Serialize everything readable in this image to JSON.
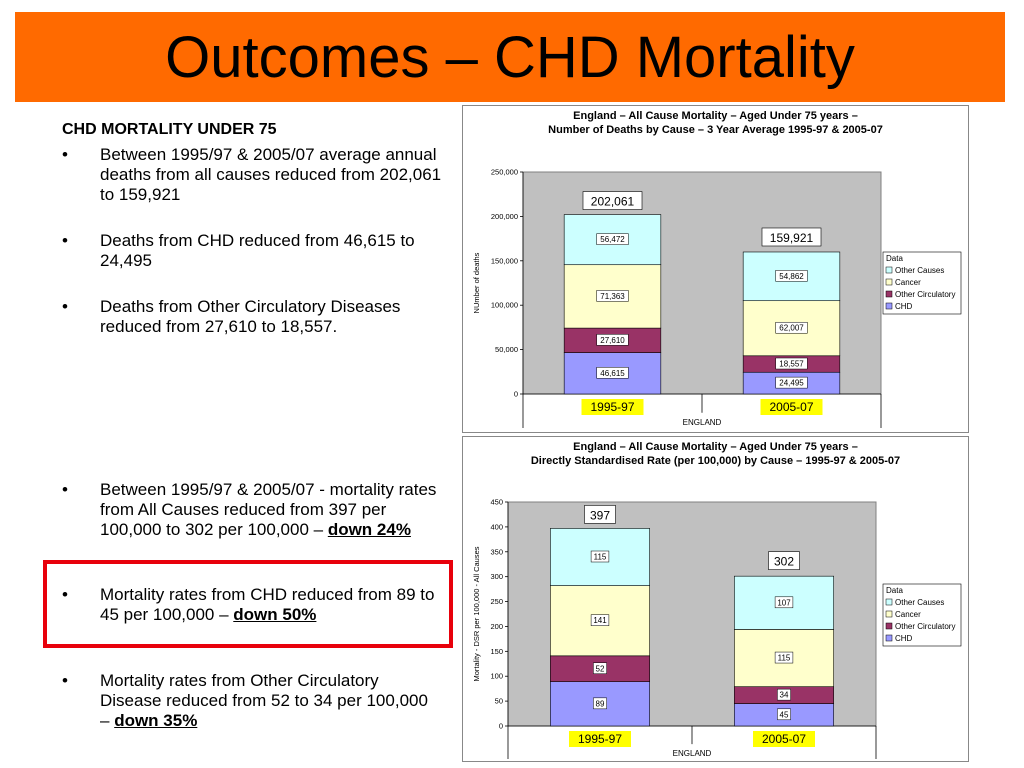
{
  "slide": {
    "title": "Outcomes – CHD Mortality",
    "title_bg": "#ff6a00",
    "highlight_color": "#e8000b"
  },
  "left_text": {
    "heading": "CHD MORTALITY UNDER 75",
    "bullet_symbol": "•",
    "bullets_top": [
      {
        "text": "Between 1995/97 & 2005/07 average annual deaths from all causes reduced from 202,061 to 159,921"
      },
      {
        "text": "Deaths from CHD reduced from 46,615 to 24,495"
      },
      {
        "text": "Deaths from Other Circulatory Diseases reduced from 27,610 to 18,557."
      }
    ],
    "bullets_bottom": [
      {
        "text": "Between 1995/97 & 2005/07 - mortality rates from All Causes reduced from 397 per 100,000 to 302 per 100,000 – ",
        "emph": "down 24%"
      },
      {
        "text": "Mortality rates from CHD reduced from 89 to 45 per 100,000 – ",
        "emph": "down 50%"
      },
      {
        "text": "Mortality rates from Other Circulatory Disease reduced from 52 to 34 per 100,000 – ",
        "emph": "down 35%"
      }
    ]
  },
  "chart_data": [
    {
      "type": "bar",
      "stacked": true,
      "title_line1": "England – All Cause Mortality – Aged Under 75 years –",
      "title_line2": "Number of Deaths by Cause – 3 Year Average 1995-97 & 2005-07",
      "ylabel": "NUmber of deaths",
      "xlabel": "ENGLAND",
      "ylim": [
        0,
        250000
      ],
      "yticks": [
        0,
        50000,
        100000,
        150000,
        200000,
        250000
      ],
      "ytick_labels": [
        "0",
        "50,000",
        "100,000",
        "150,000",
        "200,000",
        "250,000"
      ],
      "categories": [
        "1995-97",
        "2005-07"
      ],
      "category_highlight": "#ffff00",
      "totals": [
        202061,
        159921
      ],
      "total_labels": [
        "202,061",
        "159,921"
      ],
      "legend_title": "Data",
      "legend_position": "right",
      "grid": false,
      "plot_bg": "#c0c0c0",
      "series": [
        {
          "name": "CHD",
          "color": "#9999ff",
          "values": [
            46615,
            24495
          ],
          "labels": [
            "46,615",
            "24,495"
          ]
        },
        {
          "name": "Other Circulatory",
          "color": "#993366",
          "values": [
            27610,
            18557
          ],
          "labels": [
            "27,610",
            "18,557"
          ]
        },
        {
          "name": "Cancer",
          "color": "#ffffcc",
          "values": [
            71363,
            62007
          ],
          "labels": [
            "71,363",
            "62,007"
          ]
        },
        {
          "name": "Other Causes",
          "color": "#ccffff",
          "values": [
            56472,
            54862
          ],
          "labels": [
            "56,472",
            "54,862"
          ]
        }
      ],
      "legend_order": [
        "Other Causes",
        "Cancer",
        "Other Circulatory",
        "CHD"
      ]
    },
    {
      "type": "bar",
      "stacked": true,
      "title_line1": "England – All Cause Mortality – Aged Under 75 years –",
      "title_line2": "Directly Standardised Rate (per 100,000) by Cause – 1995-97 & 2005-07",
      "ylabel": "Mortality - DSR per 100,000 - All Causes",
      "xlabel": "ENGLAND",
      "ylim": [
        0,
        450
      ],
      "yticks": [
        0,
        50,
        100,
        150,
        200,
        250,
        300,
        350,
        400,
        450
      ],
      "ytick_labels": [
        "0",
        "50",
        "100",
        "150",
        "200",
        "250",
        "300",
        "350",
        "400",
        "450"
      ],
      "categories": [
        "1995-97",
        "2005-07"
      ],
      "category_highlight": "#ffff00",
      "totals": [
        397,
        302
      ],
      "total_labels": [
        "397",
        "302"
      ],
      "legend_title": "Data",
      "legend_position": "right",
      "grid": false,
      "plot_bg": "#c0c0c0",
      "series": [
        {
          "name": "CHD",
          "color": "#9999ff",
          "values": [
            89,
            45
          ],
          "labels": [
            "89",
            "45"
          ]
        },
        {
          "name": "Other Circulatory",
          "color": "#993366",
          "values": [
            52,
            34
          ],
          "labels": [
            "52",
            "34"
          ]
        },
        {
          "name": "Cancer",
          "color": "#ffffcc",
          "values": [
            141,
            115
          ],
          "labels": [
            "141",
            "115"
          ]
        },
        {
          "name": "Other Causes",
          "color": "#ccffff",
          "values": [
            115,
            107
          ],
          "labels": [
            "115",
            "107"
          ]
        }
      ],
      "legend_order": [
        "Other Causes",
        "Cancer",
        "Other Circulatory",
        "CHD"
      ]
    }
  ]
}
